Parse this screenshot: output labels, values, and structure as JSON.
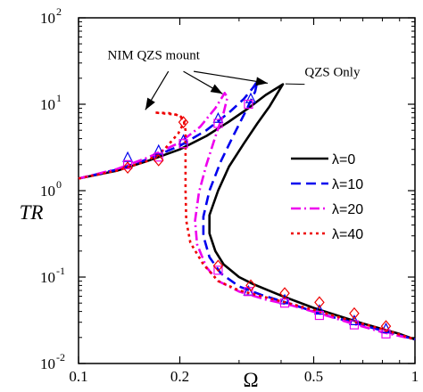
{
  "chart_data": {
    "type": "line",
    "xlabel": "Ω",
    "ylabel": "TR",
    "xscale": "log",
    "yscale": "log",
    "xlim": [
      0.1,
      1
    ],
    "ylim": [
      0.01,
      100
    ],
    "xticks": [
      {
        "value": 0.1,
        "label": "0.1"
      },
      {
        "value": 0.2,
        "label": "0.2"
      },
      {
        "value": 0.5,
        "label": "0.5"
      },
      {
        "value": 1,
        "label": "1"
      }
    ],
    "yticks": [
      {
        "value": 0.01,
        "base": "10",
        "exp": "-2"
      },
      {
        "value": 0.1,
        "base": "10",
        "exp": "-1"
      },
      {
        "value": 1,
        "base": "10",
        "exp": "0"
      },
      {
        "value": 10,
        "base": "10",
        "exp": "1"
      },
      {
        "value": 100,
        "base": "10",
        "exp": "2"
      }
    ],
    "legend_position": "middle-right",
    "series": [
      {
        "name": "λ=0",
        "color": "#000000",
        "dash": "solid",
        "points": [
          [
            0.1,
            1.38
          ],
          [
            0.13,
            1.7
          ],
          [
            0.16,
            2.2
          ],
          [
            0.2,
            3.0
          ],
          [
            0.24,
            4.3
          ],
          [
            0.28,
            6.3
          ],
          [
            0.32,
            9.0
          ],
          [
            0.36,
            12.8
          ],
          [
            0.39,
            15.5
          ],
          [
            0.405,
            17.0
          ],
          [
            0.395,
            14.5
          ],
          [
            0.37,
            9.5
          ],
          [
            0.34,
            6.0
          ],
          [
            0.31,
            3.5
          ],
          [
            0.28,
            1.9
          ],
          [
            0.26,
            1.0
          ],
          [
            0.245,
            0.52
          ],
          [
            0.245,
            0.32
          ],
          [
            0.255,
            0.2
          ],
          [
            0.27,
            0.14
          ],
          [
            0.3,
            0.1
          ],
          [
            0.33,
            0.083
          ],
          [
            0.4,
            0.061
          ],
          [
            0.5,
            0.044
          ],
          [
            0.6,
            0.035
          ],
          [
            0.7,
            0.029
          ],
          [
            0.8,
            0.025
          ],
          [
            0.9,
            0.022
          ],
          [
            1,
            0.019
          ]
        ]
      },
      {
        "name": "λ=10",
        "color": "#0000ee",
        "dash": "long-dash",
        "points": [
          [
            0.1,
            1.38
          ],
          [
            0.13,
            1.75
          ],
          [
            0.16,
            2.3
          ],
          [
            0.2,
            3.3
          ],
          [
            0.24,
            5.0
          ],
          [
            0.28,
            8.0
          ],
          [
            0.31,
            11.5
          ],
          [
            0.33,
            15.5
          ],
          [
            0.34,
            18.5
          ],
          [
            0.335,
            14.0
          ],
          [
            0.315,
            8.5
          ],
          [
            0.29,
            4.5
          ],
          [
            0.265,
            2.2
          ],
          [
            0.245,
            1.0
          ],
          [
            0.235,
            0.5
          ],
          [
            0.235,
            0.3
          ],
          [
            0.245,
            0.17
          ],
          [
            0.265,
            0.11
          ],
          [
            0.3,
            0.078
          ],
          [
            0.35,
            0.062
          ],
          [
            0.42,
            0.05
          ],
          [
            0.52,
            0.038
          ],
          [
            0.65,
            0.03
          ],
          [
            0.8,
            0.024
          ],
          [
            1,
            0.019
          ]
        ]
      },
      {
        "name": "λ=20",
        "color": "#ee00ee",
        "dash": "dash-dot",
        "points": [
          [
            0.1,
            1.38
          ],
          [
            0.13,
            1.78
          ],
          [
            0.16,
            2.4
          ],
          [
            0.2,
            3.6
          ],
          [
            0.23,
            5.5
          ],
          [
            0.255,
            9.0
          ],
          [
            0.272,
            13.5
          ],
          [
            0.277,
            12.0
          ],
          [
            0.27,
            8.0
          ],
          [
            0.255,
            4.2
          ],
          [
            0.24,
            2.0
          ],
          [
            0.228,
            0.95
          ],
          [
            0.222,
            0.45
          ],
          [
            0.225,
            0.24
          ],
          [
            0.24,
            0.13
          ],
          [
            0.26,
            0.09
          ],
          [
            0.3,
            0.068
          ],
          [
            0.36,
            0.055
          ],
          [
            0.43,
            0.047
          ],
          [
            0.52,
            0.038
          ],
          [
            0.65,
            0.029
          ],
          [
            0.8,
            0.023
          ],
          [
            1,
            0.019
          ]
        ]
      },
      {
        "name": "λ=40",
        "color": "#ee0000",
        "dash": "dot",
        "points": [
          [
            0.1,
            1.38
          ],
          [
            0.13,
            1.7
          ],
          [
            0.16,
            2.2
          ],
          [
            0.18,
            3.0
          ],
          [
            0.198,
            4.6
          ],
          [
            0.207,
            6.4
          ],
          [
            0.2,
            7.4
          ],
          [
            0.185,
            7.9
          ],
          [
            0.168,
            8.0
          ],
          [
            0.195,
            7.6
          ],
          [
            0.205,
            6.7
          ],
          [
            0.208,
            5.0
          ],
          [
            0.208,
            2.5
          ],
          [
            0.208,
            1.0
          ],
          [
            0.209,
            0.45
          ],
          [
            0.215,
            0.25
          ],
          [
            0.235,
            0.14
          ],
          [
            0.26,
            0.09
          ],
          [
            0.3,
            0.07
          ],
          [
            0.35,
            0.06
          ],
          [
            0.42,
            0.05
          ],
          [
            0.52,
            0.04
          ],
          [
            0.65,
            0.031
          ],
          [
            0.8,
            0.025
          ],
          [
            1,
            0.019
          ]
        ]
      }
    ],
    "markers": [
      {
        "color": "#0000ee",
        "shape": "triangle",
        "points": [
          [
            0.14,
            2.4
          ],
          [
            0.173,
            2.9
          ],
          [
            0.205,
            3.8
          ],
          [
            0.26,
            6.8
          ],
          [
            0.325,
            11.5
          ],
          [
            0.32,
            0.068
          ],
          [
            0.41,
            0.054
          ],
          [
            0.52,
            0.041
          ],
          [
            0.66,
            0.031
          ],
          [
            0.82,
            0.025
          ]
        ]
      },
      {
        "color": "#ee00ee",
        "shape": "square",
        "points": [
          [
            0.14,
            2.0
          ],
          [
            0.173,
            2.45
          ],
          [
            0.205,
            3.5
          ],
          [
            0.26,
            6.0
          ],
          [
            0.32,
            10.0
          ],
          [
            0.26,
            0.12
          ],
          [
            0.32,
            0.068
          ],
          [
            0.41,
            0.05
          ],
          [
            0.52,
            0.036
          ],
          [
            0.66,
            0.028
          ],
          [
            0.82,
            0.022
          ]
        ]
      },
      {
        "color": "#ee0000",
        "shape": "diamond",
        "points": [
          [
            0.14,
            1.85
          ],
          [
            0.173,
            2.25
          ],
          [
            0.205,
            6.2
          ],
          [
            0.26,
            0.135
          ],
          [
            0.325,
            0.08
          ],
          [
            0.41,
            0.065
          ],
          [
            0.52,
            0.051
          ],
          [
            0.66,
            0.038
          ],
          [
            0.82,
            0.027
          ]
        ]
      }
    ],
    "annotations": [
      {
        "text": "NIM QZS mount",
        "x": 0.122,
        "y": 33
      },
      {
        "text": "QZS Only",
        "x": 0.47,
        "y": 21
      }
    ],
    "arrows": [
      {
        "from": [
          0.185,
          24
        ],
        "to": [
          0.158,
          8.6
        ]
      },
      {
        "from": [
          0.205,
          24
        ],
        "to": [
          0.268,
          13.2
        ]
      },
      {
        "from": [
          0.22,
          24
        ],
        "to": [
          0.365,
          17.5
        ]
      }
    ],
    "qzs_pointer": {
      "from": [
        0.47,
        17
      ],
      "to": [
        0.412,
        17.2
      ]
    }
  }
}
